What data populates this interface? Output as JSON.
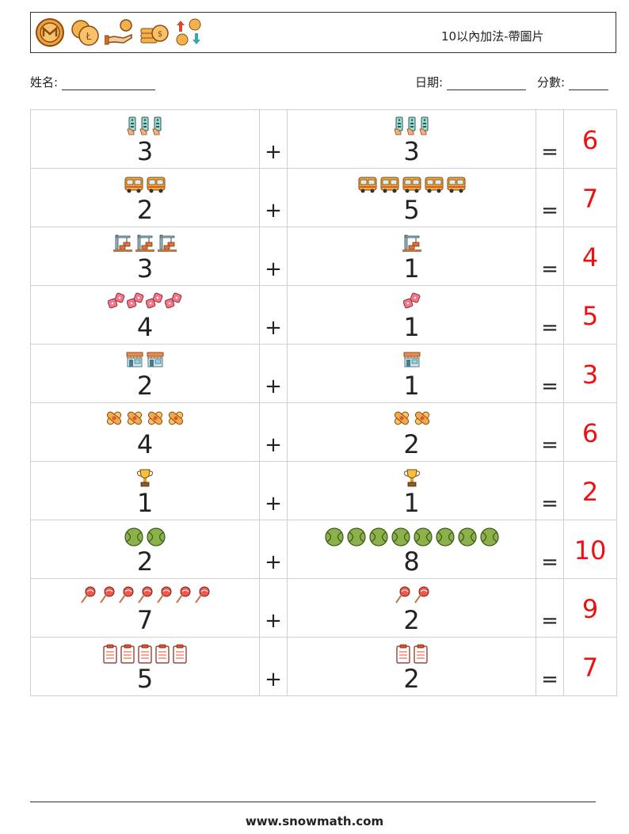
{
  "header": {
    "title": "10以內加法-帶圖片",
    "icons": [
      "coin-icon",
      "coins-icon",
      "hand-coin-icon",
      "coin-stack-icon",
      "exchange-icon"
    ]
  },
  "info": {
    "name_label": "姓名:",
    "date_label": "日期:",
    "score_label": "分數:"
  },
  "operators": {
    "plus": "+",
    "equals": "="
  },
  "rows": [
    {
      "a": "3",
      "a_icon": "remote-control-icon",
      "a_count": 3,
      "b": "3",
      "b_icon": "remote-control-icon",
      "b_count": 3,
      "answer": "6"
    },
    {
      "a": "2",
      "a_icon": "bus-icon",
      "a_count": 2,
      "b": "5",
      "b_icon": "bus-icon",
      "b_count": 5,
      "answer": "7"
    },
    {
      "a": "3",
      "a_icon": "crane-icon",
      "a_count": 3,
      "b": "1",
      "b_icon": "crane-icon",
      "b_count": 1,
      "answer": "4"
    },
    {
      "a": "4",
      "a_icon": "dice-icon",
      "a_count": 4,
      "b": "1",
      "b_icon": "dice-icon",
      "b_count": 1,
      "answer": "5"
    },
    {
      "a": "2",
      "a_icon": "shop-icon",
      "a_count": 2,
      "b": "1",
      "b_icon": "shop-icon",
      "b_count": 1,
      "answer": "3"
    },
    {
      "a": "4",
      "a_icon": "bandage-icon",
      "a_count": 4,
      "b": "2",
      "b_icon": "bandage-icon",
      "b_count": 2,
      "answer": "6"
    },
    {
      "a": "1",
      "a_icon": "trophy-icon",
      "a_count": 1,
      "b": "1",
      "b_icon": "trophy-icon",
      "b_count": 1,
      "answer": "2"
    },
    {
      "a": "2",
      "a_icon": "tennis-ball-icon",
      "a_count": 2,
      "b": "8",
      "b_icon": "tennis-ball-icon",
      "b_count": 8,
      "answer": "10"
    },
    {
      "a": "7",
      "a_icon": "lollipop-icon",
      "a_count": 7,
      "b": "2",
      "b_icon": "lollipop-icon",
      "b_count": 2,
      "answer": "9"
    },
    {
      "a": "5",
      "a_icon": "clipboard-icon",
      "a_count": 5,
      "b": "2",
      "b_icon": "clipboard-icon",
      "b_count": 2,
      "answer": "7"
    }
  ],
  "footer": {
    "website": "www.snowmath.com"
  }
}
